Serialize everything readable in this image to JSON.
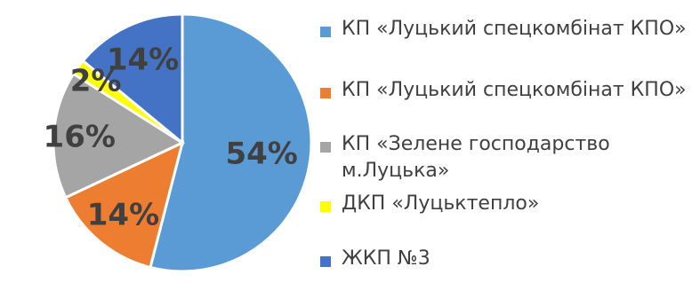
{
  "chart_data": {
    "type": "pie",
    "title": "",
    "start_angle_deg": 0,
    "direction": "clockwise",
    "slices": [
      {
        "label": "КП «Луцький спецкомбінат КПО»",
        "value": 54,
        "data_label": "54%",
        "color": "#5b9bd5"
      },
      {
        "label": "КП «Луцький спецкомбінат КПО»",
        "value": 14,
        "data_label": "14%",
        "color": "#ed7d31"
      },
      {
        "label": "КП «Зелене господарство\nм.Луцька»",
        "value": 16,
        "data_label": "16%",
        "color": "#a5a5a5"
      },
      {
        "label": "ДКП «Луцьктепло»",
        "value": 2,
        "data_label": "2%",
        "color": "#ffff00"
      },
      {
        "label": "ЖКП №3",
        "value": 14,
        "data_label": "14%",
        "color": "#4472c4"
      }
    ],
    "legend_position": "right"
  }
}
